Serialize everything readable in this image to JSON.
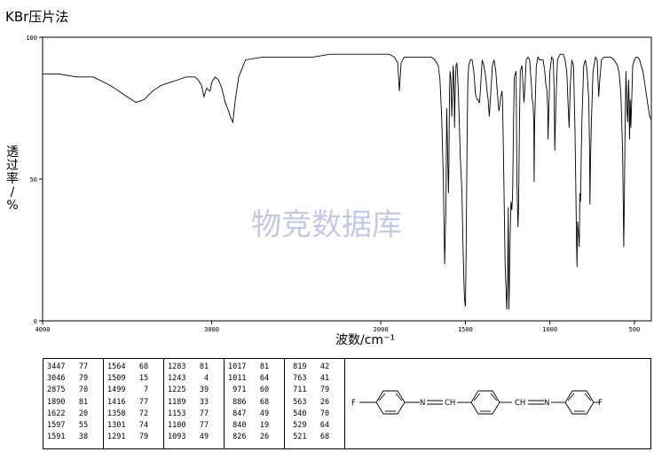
{
  "title": "KBr压片法",
  "watermark": "物竞数据库",
  "chart_data": {
    "type": "line",
    "title": "KBr压片法",
    "xlabel": "波数/cm⁻¹",
    "ylabel": "透过率/%",
    "xlim": [
      4000,
      400
    ],
    "ylim": [
      0,
      100
    ],
    "x_ticks": [
      "4000",
      "3000",
      "2000",
      "1500",
      "1000",
      "500"
    ],
    "y_ticks": [
      "0",
      "50",
      "100"
    ],
    "series": [
      {
        "x": [
          4000,
          3900,
          3800,
          3700,
          3600,
          3550,
          3500,
          3447,
          3400,
          3350,
          3300,
          3250,
          3200,
          3150,
          3100,
          3080,
          3060,
          3046,
          3030,
          3010,
          3000,
          2980,
          2960,
          2940,
          2920,
          2900,
          2890,
          2875,
          2860,
          2840,
          2800,
          2700,
          2600,
          2500,
          2400,
          2300,
          2200,
          2100,
          2000,
          1950,
          1920,
          1900,
          1890,
          1880,
          1860,
          1800,
          1750,
          1700,
          1680,
          1660,
          1650,
          1640,
          1630,
          1622,
          1615,
          1610,
          1605,
          1600,
          1597,
          1594,
          1590,
          1585,
          1580,
          1575,
          1572,
          1570,
          1566,
          1564,
          1560,
          1555,
          1550,
          1545,
          1540,
          1530,
          1520,
          1515,
          1509,
          1505,
          1500,
          1499,
          1495,
          1490,
          1485,
          1480,
          1470,
          1460,
          1450,
          1440,
          1430,
          1425,
          1420,
          1416,
          1410,
          1400,
          1390,
          1380,
          1370,
          1365,
          1358,
          1350,
          1340,
          1330,
          1320,
          1310,
          1305,
          1301,
          1296,
          1291,
          1287,
          1283,
          1280,
          1275,
          1265,
          1255,
          1250,
          1246,
          1243,
          1240,
          1235,
          1230,
          1225,
          1220,
          1215,
          1210,
          1200,
          1195,
          1189,
          1185,
          1180,
          1175,
          1165,
          1160,
          1153,
          1148,
          1140,
          1130,
          1120,
          1110,
          1105,
          1100,
          1095,
          1093,
          1090,
          1080,
          1070,
          1060,
          1050,
          1040,
          1030,
          1025,
          1017,
          1013,
          1011,
          1008,
          1000,
          990,
          980,
          975,
          971,
          965,
          955,
          940,
          930,
          920,
          910,
          900,
          892,
          886,
          880,
          870,
          860,
          852,
          847,
          843,
          840,
          836,
          830,
          826,
          823,
          819,
          814,
          810,
          800,
          790,
          780,
          770,
          765,
          763,
          760,
          755,
          745,
          730,
          720,
          715,
          711,
          705,
          695,
          680,
          660,
          640,
          620,
          600,
          590,
          580,
          570,
          566,
          563,
          560,
          555,
          550,
          545,
          540,
          535,
          532,
          529,
          525,
          521,
          515,
          510,
          500,
          490,
          480,
          470,
          460,
          450,
          440,
          430,
          420,
          410,
          400
        ],
        "y": [
          87,
          87,
          86,
          86,
          83,
          81,
          79,
          77,
          78,
          81,
          83,
          84,
          85,
          86,
          86,
          85,
          83,
          79,
          82,
          81,
          84,
          86,
          85,
          82,
          77,
          74,
          72,
          70,
          78,
          86,
          92,
          93,
          93,
          93,
          93,
          94,
          94,
          94,
          94,
          94,
          93,
          91,
          81,
          91,
          93,
          93,
          93,
          93,
          92,
          90,
          85,
          72,
          50,
          20,
          40,
          75,
          60,
          45,
          55,
          80,
          88,
          85,
          72,
          82,
          90,
          88,
          80,
          68,
          82,
          90,
          91,
          86,
          78,
          58,
          45,
          30,
          15,
          8,
          5,
          7,
          25,
          62,
          84,
          90,
          92,
          92,
          88,
          80,
          78,
          78,
          77,
          77,
          82,
          92,
          90,
          86,
          80,
          78,
          72,
          80,
          90,
          92,
          88,
          80,
          76,
          74,
          76,
          79,
          80,
          81,
          78,
          60,
          20,
          4,
          15,
          40,
          4,
          10,
          30,
          42,
          39,
          45,
          70,
          86,
          88,
          50,
          33,
          40,
          70,
          88,
          90,
          84,
          77,
          82,
          92,
          93,
          92,
          84,
          78,
          77,
          70,
          49,
          70,
          90,
          93,
          92,
          92,
          92,
          88,
          84,
          81,
          75,
          64,
          70,
          88,
          93,
          92,
          82,
          60,
          75,
          92,
          94,
          94,
          94,
          92,
          88,
          76,
          68,
          82,
          92,
          90,
          68,
          49,
          30,
          19,
          35,
          30,
          26,
          45,
          42,
          60,
          72,
          90,
          92,
          88,
          78,
          60,
          41,
          55,
          70,
          88,
          93,
          92,
          84,
          79,
          85,
          92,
          93,
          93,
          93,
          92,
          90,
          87,
          80,
          60,
          40,
          26,
          40,
          70,
          88,
          75,
          70,
          85,
          80,
          64,
          78,
          68,
          80,
          90,
          92,
          93,
          93,
          92,
          90,
          88,
          84,
          80,
          76,
          72,
          71
        ]
      }
    ]
  },
  "peak_table": {
    "columns": [
      [
        [
          "3447",
          "77"
        ],
        [
          "3046",
          "79"
        ],
        [
          "2875",
          "70"
        ],
        [
          "1890",
          "81"
        ],
        [
          "1622",
          "20"
        ],
        [
          "1597",
          "55"
        ],
        [
          "1591",
          "38"
        ]
      ],
      [
        [
          "1564",
          "68"
        ],
        [
          "1509",
          "15"
        ],
        [
          "1499",
          "7"
        ],
        [
          "1416",
          "77"
        ],
        [
          "1358",
          "72"
        ],
        [
          "1301",
          "74"
        ],
        [
          "1291",
          "79"
        ]
      ],
      [
        [
          "1283",
          "81"
        ],
        [
          "1243",
          "4"
        ],
        [
          "1225",
          "39"
        ],
        [
          "1189",
          "33"
        ],
        [
          "1153",
          "77"
        ],
        [
          "1100",
          "77"
        ],
        [
          "1093",
          "49"
        ]
      ],
      [
        [
          "1017",
          "81"
        ],
        [
          "1011",
          "64"
        ],
        [
          "971",
          "60"
        ],
        [
          "886",
          "68"
        ],
        [
          "847",
          "49"
        ],
        [
          "840",
          "19"
        ],
        [
          "826",
          "26"
        ]
      ],
      [
        [
          "819",
          "42"
        ],
        [
          "763",
          "41"
        ],
        [
          "711",
          "79"
        ],
        [
          "563",
          "26"
        ],
        [
          "540",
          "70"
        ],
        [
          "529",
          "64"
        ],
        [
          "521",
          "68"
        ]
      ]
    ]
  },
  "structure": {
    "atoms": [
      "F",
      "N",
      "CH",
      "CH",
      "N",
      "F"
    ]
  }
}
